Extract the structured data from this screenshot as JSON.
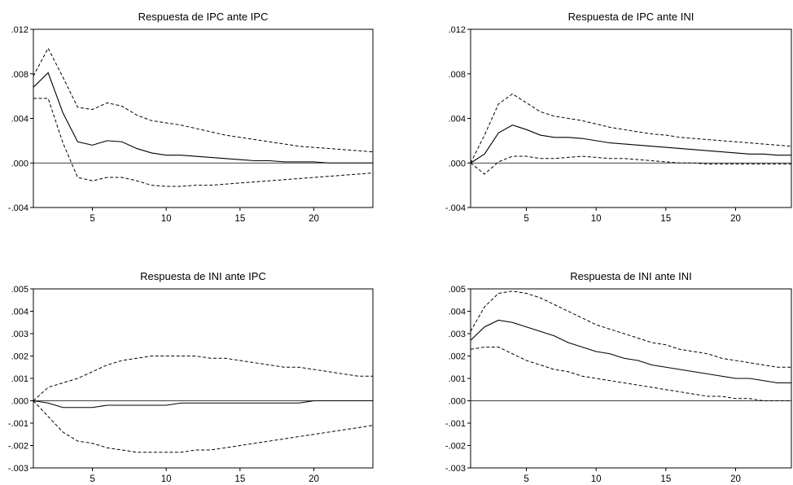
{
  "chart_data": [
    {
      "type": "line",
      "title": "Respuesta de IPC ante IPC",
      "x": [
        1,
        2,
        3,
        4,
        5,
        6,
        7,
        8,
        9,
        10,
        11,
        12,
        13,
        14,
        15,
        16,
        17,
        18,
        19,
        20,
        21,
        22,
        23,
        24
      ],
      "xticks": [
        5,
        10,
        15,
        20
      ],
      "xlim": [
        1,
        24
      ],
      "ylim": [
        -0.004,
        0.012
      ],
      "yticks": [
        -0.004,
        0.0,
        0.004,
        0.008,
        0.012
      ],
      "ytick_labels": [
        "-.004",
        ".000",
        ".004",
        ".008",
        ".012"
      ],
      "series": [
        {
          "role": "upper-band",
          "values": [
            0.0078,
            0.0103,
            0.0077,
            0.005,
            0.0048,
            0.0054,
            0.0051,
            0.0043,
            0.0038,
            0.0036,
            0.0034,
            0.0031,
            0.0028,
            0.0025,
            0.0023,
            0.0021,
            0.0019,
            0.0017,
            0.0015,
            0.0014,
            0.0013,
            0.0012,
            0.0011,
            0.001
          ]
        },
        {
          "role": "response",
          "values": [
            0.0068,
            0.0081,
            0.0045,
            0.0019,
            0.0016,
            0.002,
            0.0019,
            0.0013,
            0.0009,
            0.0007,
            0.0007,
            0.0006,
            0.0005,
            0.0004,
            0.0003,
            0.0002,
            0.0002,
            0.0001,
            0.0001,
            0.0001,
            0.0,
            0.0,
            0.0,
            0.0
          ]
        },
        {
          "role": "lower-band",
          "values": [
            0.0058,
            0.0058,
            0.0018,
            -0.0013,
            -0.0016,
            -0.0013,
            -0.0013,
            -0.0016,
            -0.002,
            -0.0021,
            -0.0021,
            -0.002,
            -0.002,
            -0.0019,
            -0.0018,
            -0.0017,
            -0.0016,
            -0.0015,
            -0.0014,
            -0.0013,
            -0.0012,
            -0.0011,
            -0.001,
            -0.0009
          ]
        }
      ]
    },
    {
      "type": "line",
      "title": "Respuesta de IPC ante INI",
      "x": [
        1,
        2,
        3,
        4,
        5,
        6,
        7,
        8,
        9,
        10,
        11,
        12,
        13,
        14,
        15,
        16,
        17,
        18,
        19,
        20,
        21,
        22,
        23,
        24
      ],
      "xticks": [
        5,
        10,
        15,
        20
      ],
      "xlim": [
        1,
        24
      ],
      "ylim": [
        -0.004,
        0.012
      ],
      "yticks": [
        -0.004,
        0.0,
        0.004,
        0.008,
        0.012
      ],
      "ytick_labels": [
        "-.004",
        ".000",
        ".004",
        ".008",
        ".012"
      ],
      "series": [
        {
          "role": "upper-band",
          "values": [
            0.0,
            0.0025,
            0.0053,
            0.0062,
            0.0054,
            0.0046,
            0.0042,
            0.004,
            0.0038,
            0.0035,
            0.0032,
            0.003,
            0.0028,
            0.0026,
            0.0025,
            0.0023,
            0.0022,
            0.0021,
            0.002,
            0.0019,
            0.0018,
            0.0017,
            0.0016,
            0.0015
          ]
        },
        {
          "role": "response",
          "values": [
            0.0,
            0.0008,
            0.0027,
            0.0034,
            0.003,
            0.0025,
            0.0023,
            0.0023,
            0.0022,
            0.002,
            0.0018,
            0.0017,
            0.0016,
            0.0015,
            0.0014,
            0.0013,
            0.0012,
            0.0011,
            0.001,
            0.0009,
            0.0008,
            0.0008,
            0.0007,
            0.0007
          ]
        },
        {
          "role": "lower-band",
          "values": [
            0.0,
            -0.001,
            0.0001,
            0.0006,
            0.0006,
            0.0004,
            0.0004,
            0.0005,
            0.0006,
            0.0005,
            0.0004,
            0.0004,
            0.0003,
            0.0002,
            0.0001,
            0.0,
            0.0,
            -0.0001,
            -0.0001,
            -0.0001,
            -0.0001,
            -0.0001,
            -0.0001,
            -0.0001
          ]
        }
      ]
    },
    {
      "type": "line",
      "title": "Respuesta de INI ante IPC",
      "x": [
        1,
        2,
        3,
        4,
        5,
        6,
        7,
        8,
        9,
        10,
        11,
        12,
        13,
        14,
        15,
        16,
        17,
        18,
        19,
        20,
        21,
        22,
        23,
        24
      ],
      "xticks": [
        5,
        10,
        15,
        20
      ],
      "xlim": [
        1,
        24
      ],
      "ylim": [
        -0.003,
        0.005
      ],
      "yticks": [
        -0.003,
        -0.002,
        -0.001,
        0.0,
        0.001,
        0.002,
        0.003,
        0.004,
        0.005
      ],
      "ytick_labels": [
        "-.003",
        "-.002",
        "-.001",
        ".000",
        ".001",
        ".002",
        ".003",
        ".004",
        ".005"
      ],
      "series": [
        {
          "role": "upper-band",
          "values": [
            0.0,
            0.0006,
            0.0008,
            0.001,
            0.0013,
            0.0016,
            0.0018,
            0.0019,
            0.002,
            0.002,
            0.002,
            0.002,
            0.0019,
            0.0019,
            0.0018,
            0.0017,
            0.0016,
            0.0015,
            0.0015,
            0.0014,
            0.0013,
            0.0012,
            0.0011,
            0.0011
          ]
        },
        {
          "role": "response",
          "values": [
            0.0,
            -0.0001,
            -0.0003,
            -0.0003,
            -0.0003,
            -0.0002,
            -0.0002,
            -0.0002,
            -0.0002,
            -0.0002,
            -0.0001,
            -0.0001,
            -0.0001,
            -0.0001,
            -0.0001,
            -0.0001,
            -0.0001,
            -0.0001,
            -0.0001,
            0.0,
            0.0,
            0.0,
            0.0,
            0.0
          ]
        },
        {
          "role": "lower-band",
          "values": [
            0.0,
            -0.0007,
            -0.0014,
            -0.0018,
            -0.0019,
            -0.0021,
            -0.0022,
            -0.0023,
            -0.0023,
            -0.0023,
            -0.0023,
            -0.0022,
            -0.0022,
            -0.0021,
            -0.002,
            -0.0019,
            -0.0018,
            -0.0017,
            -0.0016,
            -0.0015,
            -0.0014,
            -0.0013,
            -0.0012,
            -0.0011
          ]
        }
      ]
    },
    {
      "type": "line",
      "title": "Respuesta de INI ante INI",
      "x": [
        1,
        2,
        3,
        4,
        5,
        6,
        7,
        8,
        9,
        10,
        11,
        12,
        13,
        14,
        15,
        16,
        17,
        18,
        19,
        20,
        21,
        22,
        23,
        24
      ],
      "xticks": [
        5,
        10,
        15,
        20
      ],
      "xlim": [
        1,
        24
      ],
      "ylim": [
        -0.003,
        0.005
      ],
      "yticks": [
        -0.003,
        -0.002,
        -0.001,
        0.0,
        0.001,
        0.002,
        0.003,
        0.004,
        0.005
      ],
      "ytick_labels": [
        "-.003",
        "-.002",
        "-.001",
        ".000",
        ".001",
        ".002",
        ".003",
        ".004",
        ".005"
      ],
      "series": [
        {
          "role": "upper-band",
          "values": [
            0.0031,
            0.0042,
            0.0048,
            0.0049,
            0.0048,
            0.0046,
            0.0043,
            0.004,
            0.0037,
            0.0034,
            0.0032,
            0.003,
            0.0028,
            0.0026,
            0.0025,
            0.0023,
            0.0022,
            0.0021,
            0.0019,
            0.0018,
            0.0017,
            0.0016,
            0.0015,
            0.0015
          ]
        },
        {
          "role": "response",
          "values": [
            0.0027,
            0.0033,
            0.0036,
            0.0035,
            0.0033,
            0.0031,
            0.0029,
            0.0026,
            0.0024,
            0.0022,
            0.0021,
            0.0019,
            0.0018,
            0.0016,
            0.0015,
            0.0014,
            0.0013,
            0.0012,
            0.0011,
            0.001,
            0.001,
            0.0009,
            0.0008,
            0.0008
          ]
        },
        {
          "role": "lower-band",
          "values": [
            0.0023,
            0.0024,
            0.0024,
            0.0021,
            0.0018,
            0.0016,
            0.0014,
            0.0013,
            0.0011,
            0.001,
            0.0009,
            0.0008,
            0.0007,
            0.0006,
            0.0005,
            0.0004,
            0.0003,
            0.0002,
            0.0002,
            0.0001,
            0.0001,
            0.0,
            0.0,
            0.0
          ]
        }
      ]
    }
  ]
}
